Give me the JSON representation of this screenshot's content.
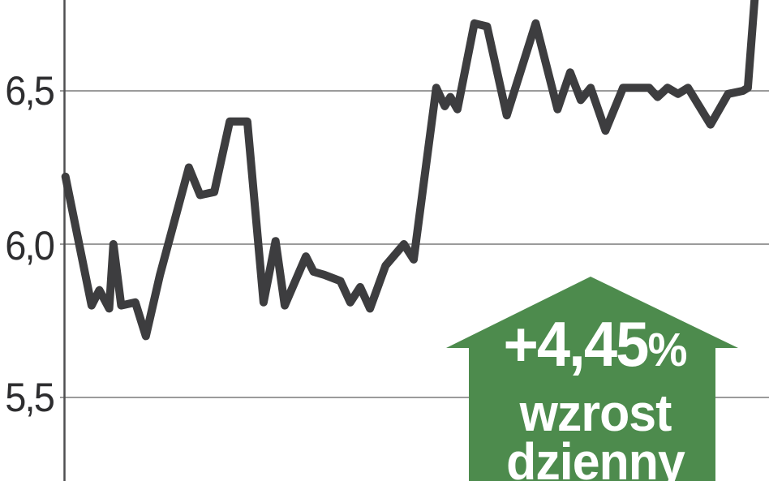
{
  "chart": {
    "yticks": [
      {
        "label": "6,5",
        "value": 6.5
      },
      {
        "label": "6,0",
        "value": 6.0
      },
      {
        "label": "5,5",
        "value": 5.5
      }
    ],
    "line_color": "#3d3d3f",
    "grid_color": "#9b9b9b",
    "axis_color": "#4f4f51",
    "background_color": "#ffffff"
  },
  "badge": {
    "change_percent": "+4,45",
    "percent_sign": "%",
    "line1": "wzrost",
    "line2": "dzienny",
    "arrow_color": "#4d8b4d",
    "text_color": "#ffffff",
    "direction": "up"
  },
  "chart_data": {
    "type": "line",
    "title": "",
    "xlabel": "",
    "ylabel": "",
    "x_axis_visible": false,
    "x_units": "percent_of_plot_width",
    "ylim": [
      5.3,
      6.85
    ],
    "ytick_values": [
      5.5,
      6.0,
      6.5
    ],
    "ytick_labels": [
      "5,5",
      "6,0",
      "6,5"
    ],
    "grid": true,
    "series": [
      {
        "name": "price",
        "points": [
          [
            0.2,
            6.22
          ],
          [
            3.9,
            5.8
          ],
          [
            5.0,
            5.85
          ],
          [
            6.4,
            5.79
          ],
          [
            7.0,
            6.0
          ],
          [
            8.1,
            5.8
          ],
          [
            10.1,
            5.81
          ],
          [
            11.6,
            5.7
          ],
          [
            13.6,
            5.9
          ],
          [
            17.7,
            6.25
          ],
          [
            19.3,
            6.16
          ],
          [
            21.3,
            6.17
          ],
          [
            23.5,
            6.4
          ],
          [
            26.0,
            6.4
          ],
          [
            28.3,
            5.81
          ],
          [
            30.0,
            6.01
          ],
          [
            31.3,
            5.8
          ],
          [
            34.3,
            5.96
          ],
          [
            35.4,
            5.91
          ],
          [
            36.9,
            5.9
          ],
          [
            39.2,
            5.88
          ],
          [
            40.6,
            5.81
          ],
          [
            42.0,
            5.86
          ],
          [
            43.4,
            5.79
          ],
          [
            45.6,
            5.93
          ],
          [
            48.2,
            6.0
          ],
          [
            49.6,
            5.95
          ],
          [
            52.8,
            6.51
          ],
          [
            54.0,
            6.45
          ],
          [
            54.8,
            6.48
          ],
          [
            55.8,
            6.44
          ],
          [
            58.2,
            6.72
          ],
          [
            60.0,
            6.71
          ],
          [
            62.8,
            6.42
          ],
          [
            66.9,
            6.72
          ],
          [
            70.0,
            6.44
          ],
          [
            71.8,
            6.56
          ],
          [
            73.3,
            6.47
          ],
          [
            74.7,
            6.51
          ],
          [
            76.8,
            6.37
          ],
          [
            79.3,
            6.51
          ],
          [
            83.0,
            6.51
          ],
          [
            84.2,
            6.48
          ],
          [
            85.6,
            6.51
          ],
          [
            87.1,
            6.49
          ],
          [
            88.5,
            6.51
          ],
          [
            91.7,
            6.39
          ],
          [
            94.2,
            6.49
          ],
          [
            96.3,
            6.5
          ],
          [
            97.0,
            6.51
          ],
          [
            98.0,
            6.81
          ]
        ]
      }
    ],
    "annotations": [
      {
        "type": "up-arrow-badge",
        "text": "+4,45% wzrost dzienny",
        "color": "#4d8b4d"
      }
    ],
    "legend": null
  }
}
